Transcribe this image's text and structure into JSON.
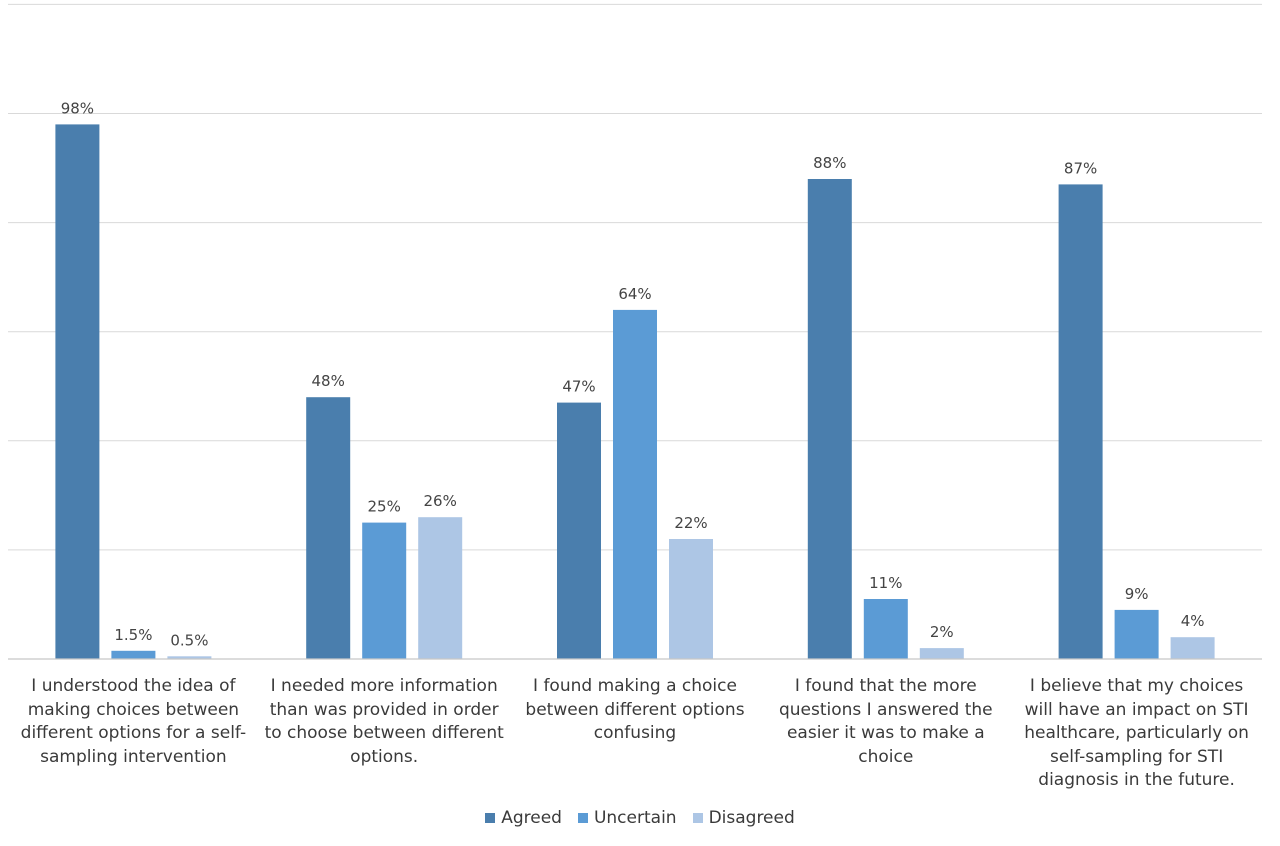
{
  "chart_data": {
    "type": "bar",
    "categories": [
      "I understood the idea of making choices between different options for a self-sampling intervention",
      "I needed more information than was provided in order to choose between different options.",
      "I found making a choice between different options confusing",
      "I found that the more questions I answered the easier it was to make a choice",
      "I believe that my choices will have an impact on STI healthcare, particularly on self-sampling for STI diagnosis in the future."
    ],
    "category_lines": [
      [
        "I understood the idea of",
        "making choices between",
        "different options for a self-",
        "sampling intervention"
      ],
      [
        "I needed more information",
        "than was provided in order",
        "to choose between different",
        "options."
      ],
      [
        "I found making a choice",
        "between different options",
        "confusing"
      ],
      [
        "I found that the more",
        "questions I answered the",
        "easier it was to make a",
        "choice"
      ],
      [
        "I believe that my choices",
        "will have an impact on STI",
        "healthcare, particularly on",
        "self-sampling for STI",
        "diagnosis in the future."
      ]
    ],
    "series": [
      {
        "name": "Agreed",
        "color": "#4a7ead",
        "values": [
          98,
          48,
          47,
          88,
          87
        ],
        "labels": [
          "98%",
          "48%",
          "47%",
          "88%",
          "87%"
        ]
      },
      {
        "name": "Uncertain",
        "color": "#5b9bd5",
        "values": [
          1.5,
          25,
          64,
          11,
          9
        ],
        "labels": [
          "1.5%",
          "25%",
          "64%",
          "11%",
          "9%"
        ]
      },
      {
        "name": "Disagreed",
        "color": "#adc6e5",
        "values": [
          0.5,
          26,
          22,
          2,
          4
        ],
        "labels": [
          "0.5%",
          "26%",
          "22%",
          "2%",
          "4%"
        ]
      }
    ],
    "ylim": [
      0,
      120
    ],
    "gridlines": [
      20,
      40,
      60,
      80,
      100,
      120
    ],
    "grid": true,
    "legend_position": "bottom"
  }
}
